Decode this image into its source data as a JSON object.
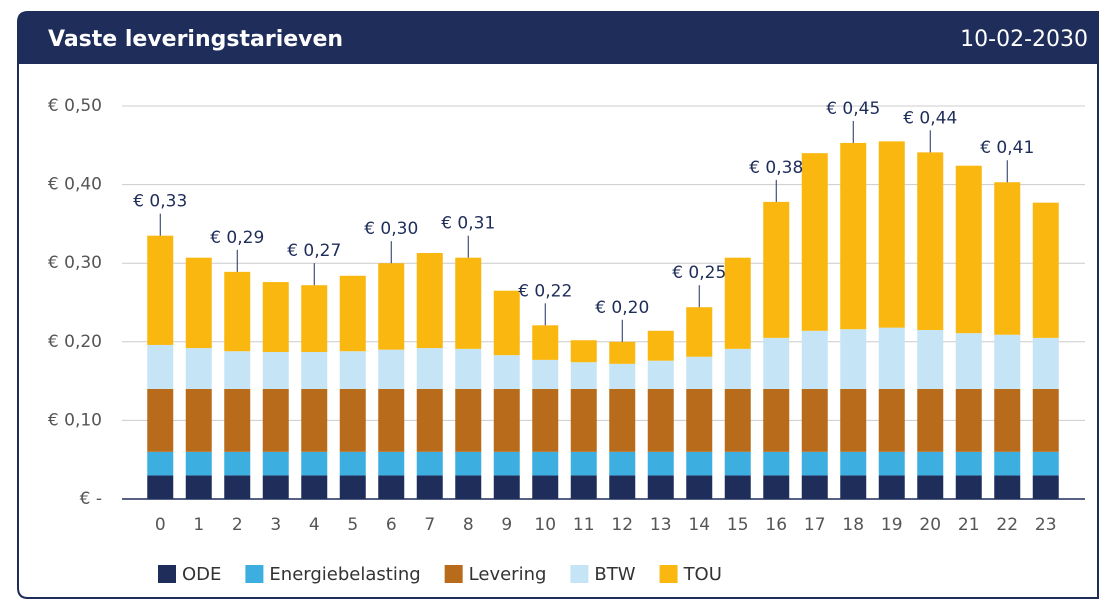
{
  "chart_data": {
    "type": "stacked_bar",
    "title": "Vaste leveringstarieven",
    "date": "10-02-2030",
    "categories": [
      "0",
      "1",
      "2",
      "3",
      "4",
      "5",
      "6",
      "7",
      "8",
      "9",
      "10",
      "11",
      "12",
      "13",
      "14",
      "15",
      "16",
      "17",
      "18",
      "19",
      "20",
      "21",
      "22",
      "23"
    ],
    "series": [
      {
        "name": "ODE",
        "color": "#1f2d5a",
        "values": [
          0.03,
          0.03,
          0.03,
          0.03,
          0.03,
          0.03,
          0.03,
          0.03,
          0.03,
          0.03,
          0.03,
          0.03,
          0.03,
          0.03,
          0.03,
          0.03,
          0.03,
          0.03,
          0.03,
          0.03,
          0.03,
          0.03,
          0.03,
          0.03
        ]
      },
      {
        "name": "Energiebelasting",
        "color": "#3daee0",
        "values": [
          0.03,
          0.03,
          0.03,
          0.03,
          0.03,
          0.03,
          0.03,
          0.03,
          0.03,
          0.03,
          0.03,
          0.03,
          0.03,
          0.03,
          0.03,
          0.03,
          0.03,
          0.03,
          0.03,
          0.03,
          0.03,
          0.03,
          0.03,
          0.03
        ]
      },
      {
        "name": "Levering",
        "color": "#b86b1a",
        "values": [
          0.08,
          0.08,
          0.08,
          0.08,
          0.08,
          0.08,
          0.08,
          0.08,
          0.08,
          0.08,
          0.08,
          0.08,
          0.08,
          0.08,
          0.08,
          0.08,
          0.08,
          0.08,
          0.08,
          0.08,
          0.08,
          0.08,
          0.08,
          0.08
        ]
      },
      {
        "name": "BTW",
        "color": "#c5e5f7",
        "values": [
          0.056,
          0.052,
          0.048,
          0.047,
          0.047,
          0.048,
          0.05,
          0.052,
          0.051,
          0.043,
          0.037,
          0.034,
          0.032,
          0.036,
          0.041,
          0.051,
          0.065,
          0.074,
          0.076,
          0.078,
          0.075,
          0.071,
          0.069,
          0.065
        ]
      },
      {
        "name": "TOU",
        "color": "#f9b70f",
        "values": [
          0.139,
          0.115,
          0.101,
          0.089,
          0.085,
          0.096,
          0.11,
          0.121,
          0.116,
          0.082,
          0.044,
          0.028,
          0.028,
          0.038,
          0.063,
          0.116,
          0.173,
          0.226,
          0.237,
          0.237,
          0.226,
          0.213,
          0.194,
          0.172
        ]
      }
    ],
    "annotations": [
      {
        "category": "0",
        "text": "€ 0,33"
      },
      {
        "category": "2",
        "text": "€ 0,29"
      },
      {
        "category": "4",
        "text": "€ 0,27"
      },
      {
        "category": "6",
        "text": "€ 0,30"
      },
      {
        "category": "8",
        "text": "€ 0,31"
      },
      {
        "category": "10",
        "text": "€ 0,22"
      },
      {
        "category": "12",
        "text": "€ 0,20"
      },
      {
        "category": "14",
        "text": "€ 0,25"
      },
      {
        "category": "16",
        "text": "€ 0,38"
      },
      {
        "category": "18",
        "text": "€ 0,45"
      },
      {
        "category": "20",
        "text": "€ 0,44"
      },
      {
        "category": "22",
        "text": "€ 0,41"
      }
    ],
    "ylim": [
      0,
      0.5
    ],
    "yticks": [
      {
        "value": 0,
        "label": "€ -"
      },
      {
        "value": 0.1,
        "label": "€ 0,10"
      },
      {
        "value": 0.2,
        "label": "€ 0,20"
      },
      {
        "value": 0.3,
        "label": "€ 0,30"
      },
      {
        "value": 0.4,
        "label": "€ 0,40"
      },
      {
        "value": 0.5,
        "label": "€ 0,50"
      }
    ],
    "grid": true
  }
}
